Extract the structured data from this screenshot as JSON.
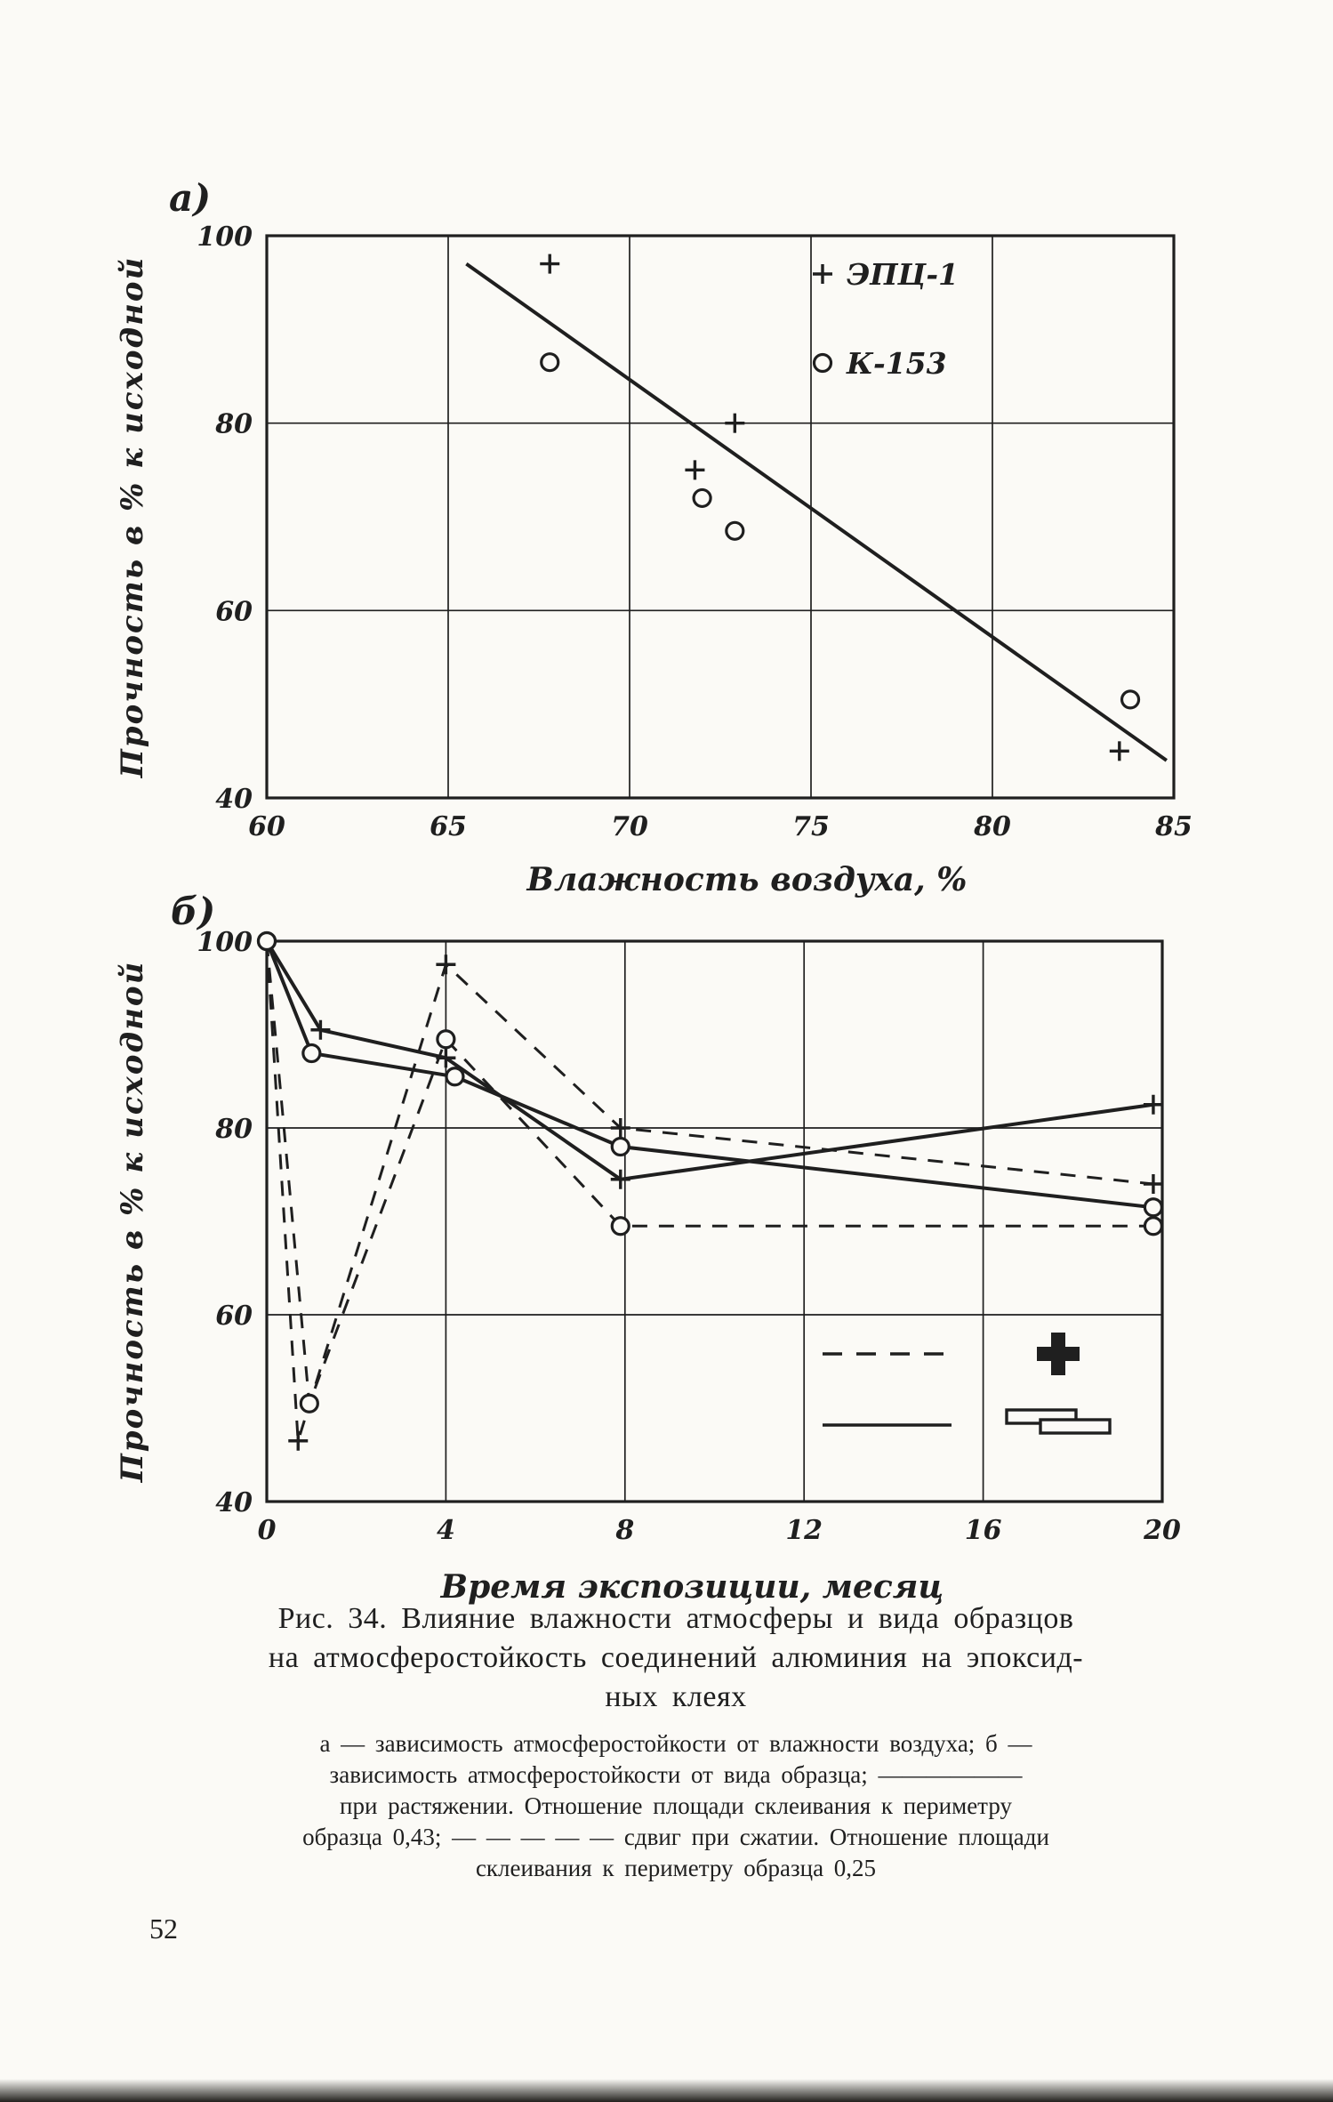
{
  "page": {
    "number": "52"
  },
  "figure": {
    "caption_title_lines": [
      "Рис. 34. Влияние влажности атмосферы и вида образцов",
      "на атмосферостойкость соединений алюминия на эпоксид-",
      "ных клеях"
    ],
    "caption_detail_lines": [
      "а — зависимость атмосферостойкости от влажности воздуха; б —",
      "зависимость атмосферостойкости от вида образца; ——————",
      "при растяжении. Отношение площади склеивания к периметру",
      "образца 0,43; — — — — — сдвиг при сжатии. Отношение площади",
      "склеивания к периметру образца 0,25"
    ]
  },
  "ink_color": "#1f1f1f",
  "paper_color": "#fbfaf6",
  "chart_data": [
    {
      "id": "a",
      "panel_label": "а)",
      "type": "scatter",
      "xlabel": "Влажность воздуха,  %",
      "ylabel": "Прочность в % к исходной",
      "xlim": [
        60,
        85
      ],
      "ylim": [
        40,
        100
      ],
      "xticks": [
        60,
        65,
        70,
        75,
        80,
        85
      ],
      "yticks": [
        40,
        60,
        80,
        100
      ],
      "grid": true,
      "legend": [
        {
          "marker": "plus",
          "label": "ЭПЦ-1"
        },
        {
          "marker": "circle",
          "label": "К-153"
        }
      ],
      "series": [
        {
          "name": "ЭПЦ-1",
          "marker": "plus",
          "points": [
            [
              67.8,
              97
            ],
            [
              72.9,
              80
            ],
            [
              71.8,
              75
            ],
            [
              83.5,
              45
            ]
          ]
        },
        {
          "name": "К-153",
          "marker": "circle",
          "points": [
            [
              67.8,
              86.5
            ],
            [
              72.0,
              72
            ],
            [
              72.9,
              68.5
            ],
            [
              83.8,
              50.5
            ]
          ]
        }
      ],
      "trend_line": {
        "points": [
          [
            65.5,
            97
          ],
          [
            84.8,
            44
          ]
        ]
      }
    },
    {
      "id": "b",
      "panel_label": "б)",
      "type": "line",
      "xlabel": "Время экспозиции, месяц",
      "ylabel": "Прочность в % к исходной",
      "xlim": [
        0,
        20
      ],
      "ylim": [
        40,
        100
      ],
      "xticks": [
        0,
        4,
        8,
        12,
        16,
        20
      ],
      "yticks": [
        40,
        60,
        80,
        100
      ],
      "grid": true,
      "series": [
        {
          "name": "сдвиг-при-сжатии ЭПЦ-1",
          "marker": "plus",
          "line": "dashed",
          "points": [
            [
              0,
              100
            ],
            [
              0.7,
              46.5
            ],
            [
              4,
              97.5
            ],
            [
              7.9,
              80
            ],
            [
              19.8,
              74
            ]
          ]
        },
        {
          "name": "сдвиг-при-сжатии К-153",
          "marker": "circle",
          "line": "dashed",
          "points": [
            [
              0,
              100
            ],
            [
              0.95,
              50.5
            ],
            [
              4,
              89.5
            ],
            [
              7.9,
              69.5
            ],
            [
              19.8,
              69.5
            ]
          ]
        },
        {
          "name": "растяжение ЭПЦ-1",
          "marker": "plus",
          "line": "solid",
          "points": [
            [
              0,
              100
            ],
            [
              1.2,
              90.5
            ],
            [
              4,
              87.5
            ],
            [
              7.9,
              74.5
            ],
            [
              19.8,
              82.5
            ]
          ]
        },
        {
          "name": "растяжение К-153",
          "marker": "circle",
          "line": "solid",
          "points": [
            [
              0,
              100
            ],
            [
              1.0,
              88
            ],
            [
              4.2,
              85.5
            ],
            [
              7.9,
              78
            ],
            [
              19.8,
              71.5
            ]
          ]
        }
      ],
      "legend_symbols": [
        {
          "line": "dashed",
          "symbol": "cross-specimen"
        },
        {
          "line": "solid",
          "symbol": "lap-joint-specimen"
        }
      ]
    }
  ]
}
